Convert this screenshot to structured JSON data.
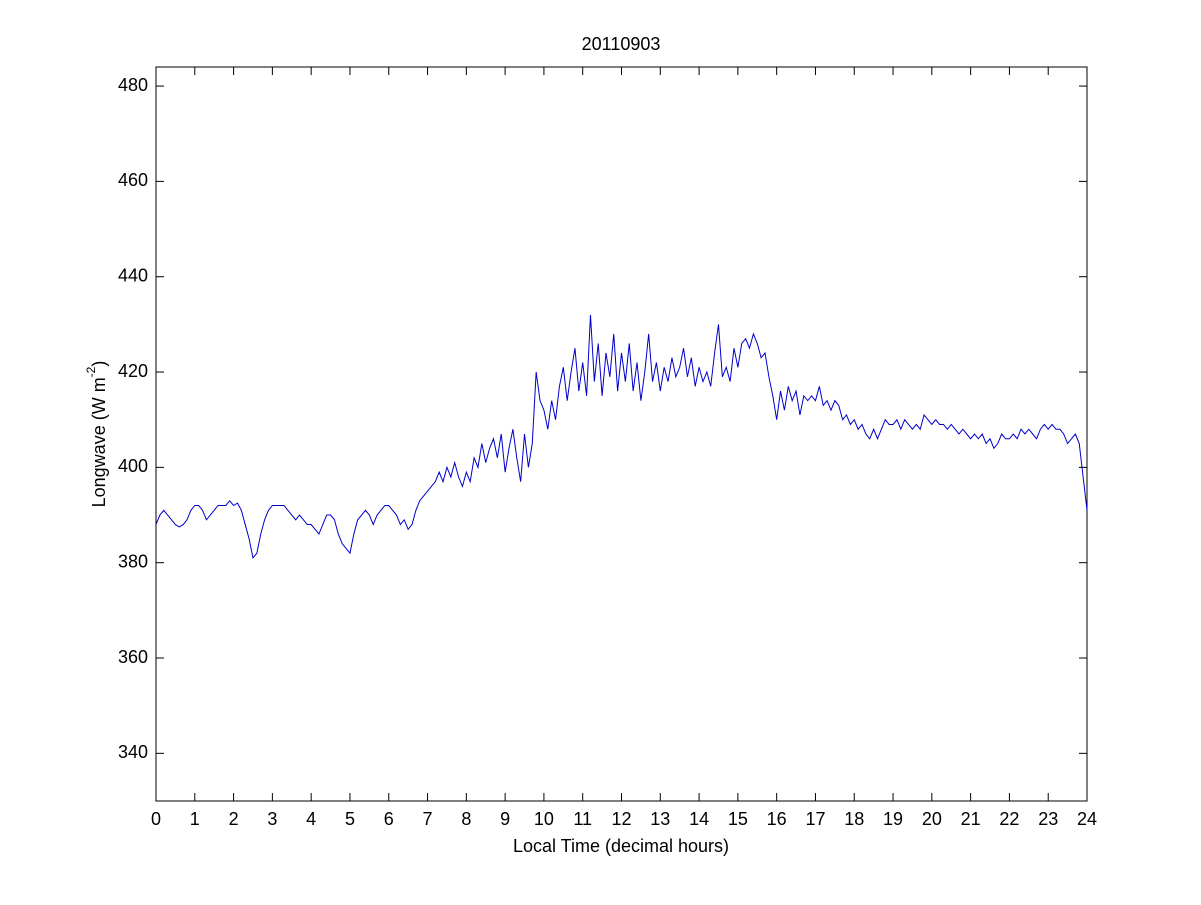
{
  "chart_data": {
    "type": "line",
    "title": "20110903",
    "xlabel": "Local Time (decimal hours)",
    "ylabel": {
      "text": "Longwave (W m",
      "superscript": "-2",
      "suffix": ")"
    },
    "color": "#0000cc",
    "xlim": [
      0,
      24
    ],
    "ylim": [
      330,
      484
    ],
    "xticks": [
      0,
      1,
      2,
      3,
      4,
      5,
      6,
      7,
      8,
      9,
      10,
      11,
      12,
      13,
      14,
      15,
      16,
      17,
      18,
      19,
      20,
      21,
      22,
      23,
      24
    ],
    "yticks": [
      340,
      360,
      380,
      400,
      420,
      440,
      460,
      480
    ],
    "x": [
      0,
      0.1,
      0.2,
      0.3,
      0.4,
      0.5,
      0.6,
      0.7,
      0.8,
      0.9,
      1,
      1.1,
      1.2,
      1.3,
      1.4,
      1.5,
      1.6,
      1.7,
      1.8,
      1.9,
      2,
      2.1,
      2.2,
      2.3,
      2.4,
      2.5,
      2.6,
      2.7,
      2.8,
      2.9,
      3,
      3.1,
      3.2,
      3.3,
      3.4,
      3.5,
      3.6,
      3.7,
      3.8,
      3.9,
      4,
      4.1,
      4.2,
      4.3,
      4.4,
      4.5,
      4.6,
      4.7,
      4.8,
      4.9,
      5,
      5.1,
      5.2,
      5.3,
      5.4,
      5.5,
      5.6,
      5.7,
      5.8,
      5.9,
      6,
      6.1,
      6.2,
      6.3,
      6.4,
      6.5,
      6.6,
      6.7,
      6.8,
      6.9,
      7,
      7.1,
      7.2,
      7.3,
      7.4,
      7.5,
      7.6,
      7.7,
      7.8,
      7.9,
      8,
      8.1,
      8.2,
      8.3,
      8.4,
      8.5,
      8.6,
      8.7,
      8.8,
      8.9,
      9,
      9.1,
      9.2,
      9.3,
      9.4,
      9.5,
      9.6,
      9.7,
      9.8,
      9.9,
      10,
      10.1,
      10.2,
      10.3,
      10.4,
      10.5,
      10.6,
      10.7,
      10.8,
      10.9,
      11,
      11.1,
      11.2,
      11.3,
      11.4,
      11.5,
      11.6,
      11.7,
      11.8,
      11.9,
      12,
      12.1,
      12.2,
      12.3,
      12.4,
      12.5,
      12.6,
      12.7,
      12.8,
      12.9,
      13,
      13.1,
      13.2,
      13.3,
      13.4,
      13.5,
      13.6,
      13.7,
      13.8,
      13.9,
      14,
      14.1,
      14.2,
      14.3,
      14.4,
      14.5,
      14.6,
      14.7,
      14.8,
      14.9,
      15,
      15.1,
      15.2,
      15.3,
      15.4,
      15.5,
      15.6,
      15.7,
      15.8,
      15.9,
      16,
      16.1,
      16.2,
      16.3,
      16.4,
      16.5,
      16.6,
      16.7,
      16.8,
      16.9,
      17,
      17.1,
      17.2,
      17.3,
      17.4,
      17.5,
      17.6,
      17.7,
      17.8,
      17.9,
      18,
      18.1,
      18.2,
      18.3,
      18.4,
      18.5,
      18.6,
      18.7,
      18.8,
      18.9,
      19,
      19.1,
      19.2,
      19.3,
      19.4,
      19.5,
      19.6,
      19.7,
      19.8,
      19.9,
      20,
      20.1,
      20.2,
      20.3,
      20.4,
      20.5,
      20.6,
      20.7,
      20.8,
      20.9,
      21,
      21.1,
      21.2,
      21.3,
      21.4,
      21.5,
      21.6,
      21.7,
      21.8,
      21.9,
      22,
      22.1,
      22.2,
      22.3,
      22.4,
      22.5,
      22.6,
      22.7,
      22.8,
      22.9,
      23,
      23.1,
      23.2,
      23.3,
      23.4,
      23.5,
      23.6,
      23.7,
      23.8,
      23.9,
      24
    ],
    "values": [
      388,
      390,
      391,
      390,
      389,
      388,
      387.5,
      388,
      389,
      391,
      392,
      392,
      391,
      389,
      390,
      391,
      392,
      392,
      392,
      393,
      392,
      392.5,
      391,
      388,
      385,
      381,
      382,
      386,
      389,
      391,
      392,
      392,
      392,
      392,
      391,
      390,
      389,
      390,
      389,
      388,
      388,
      387,
      386,
      388,
      390,
      390,
      389,
      386,
      384,
      383,
      382,
      386,
      389,
      390,
      391,
      390,
      388,
      390,
      391,
      392,
      392,
      391,
      390,
      388,
      389,
      387,
      388,
      391,
      393,
      394,
      395,
      396,
      397,
      399,
      397,
      400,
      398,
      401,
      398,
      396,
      399,
      397,
      402,
      400,
      405,
      401,
      404,
      406,
      402,
      407,
      399,
      404,
      408,
      402,
      397,
      407,
      400,
      405,
      420,
      414,
      412,
      408,
      414,
      410,
      417,
      421,
      414,
      420,
      425,
      416,
      422,
      415,
      432,
      418,
      426,
      415,
      424,
      419,
      428,
      416,
      424,
      418,
      426,
      416,
      422,
      414,
      420,
      428,
      418,
      422,
      416,
      421,
      418,
      423,
      419,
      421,
      425,
      419,
      423,
      417,
      421,
      418,
      420,
      417,
      424,
      430,
      419,
      421,
      418,
      425,
      421,
      426,
      427,
      425,
      428,
      426,
      423,
      424,
      419,
      415,
      410,
      416,
      412,
      417,
      414,
      416,
      411,
      415,
      414,
      415,
      414,
      417,
      413,
      414,
      412,
      414,
      413,
      410,
      411,
      409,
      410,
      408,
      409,
      407,
      406,
      408,
      406,
      408,
      410,
      409,
      409,
      410,
      408,
      410,
      409,
      408,
      409,
      408,
      411,
      410,
      409,
      410,
      409,
      409,
      408,
      409,
      408,
      407,
      408,
      407,
      406,
      407,
      406,
      407,
      405,
      406,
      404,
      405,
      407,
      406,
      406,
      407,
      406,
      408,
      407,
      408,
      407,
      406,
      408,
      409,
      408,
      409,
      408,
      408,
      407,
      405,
      406,
      407,
      405,
      398,
      391
    ]
  }
}
